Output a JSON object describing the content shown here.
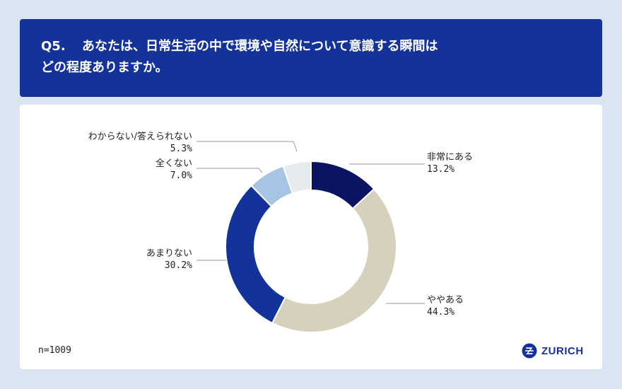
{
  "header": {
    "question_number": "Q5.",
    "question_line1": "あなたは、日常生活の中で環境や自然について意識する瞬間は",
    "question_line2": "どの程度ありますか。"
  },
  "footer": {
    "sample_size": "n=1009",
    "logo_text": "ZURICH"
  },
  "colors": {
    "header_bg": "#14339a",
    "page_bg": "#dbe5f1"
  },
  "chart_data": {
    "type": "pie",
    "donut": true,
    "categories": [
      "非常にある",
      "ややある",
      "あまりない",
      "全くない",
      "わからない/答えられない"
    ],
    "values": [
      13.2,
      44.3,
      30.2,
      7.0,
      5.3
    ],
    "value_labels": [
      "13.2%",
      "44.3%",
      "30.2%",
      "7.0%",
      "5.3%"
    ],
    "colors": [
      "#0a1463",
      "#d6d1bd",
      "#14339a",
      "#a6c4e4",
      "#e5ebef"
    ],
    "start_angle": "12 o'clock",
    "direction": "clockwise"
  }
}
